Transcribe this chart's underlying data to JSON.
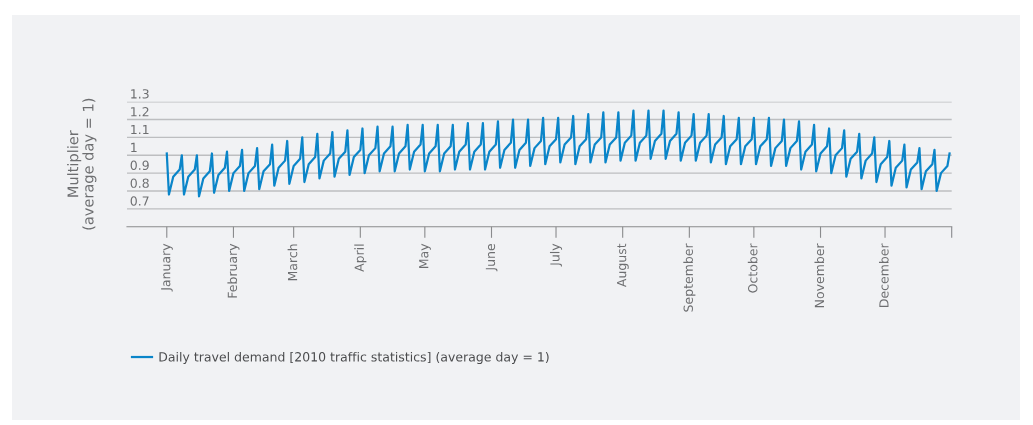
{
  "chart_data": {
    "type": "line",
    "ylabel": "Multiplier\n(average day = 1)",
    "x": [
      "2010-01-01",
      "2010-01-02",
      "2010-01-04",
      "2010-01-07",
      "2010-01-08",
      "2010-01-09",
      "2010-01-11",
      "2010-01-14",
      "2010-01-15",
      "2010-01-16",
      "2010-01-18",
      "2010-01-21",
      "2010-01-22",
      "2010-01-23",
      "2010-01-25",
      "2010-01-28",
      "2010-01-29",
      "2010-01-30",
      "2010-02-01",
      "2010-02-04",
      "2010-02-05",
      "2010-02-06",
      "2010-02-08",
      "2010-02-11",
      "2010-02-12",
      "2010-02-13",
      "2010-02-15",
      "2010-02-18",
      "2010-02-19",
      "2010-02-20",
      "2010-02-22",
      "2010-02-25",
      "2010-02-26",
      "2010-02-27",
      "2010-03-01",
      "2010-03-04",
      "2010-03-05",
      "2010-03-06",
      "2010-03-08",
      "2010-03-11",
      "2010-03-12",
      "2010-03-13",
      "2010-03-15",
      "2010-03-18",
      "2010-03-19",
      "2010-03-20",
      "2010-03-22",
      "2010-03-25",
      "2010-03-26",
      "2010-03-27",
      "2010-03-29",
      "2010-04-01",
      "2010-04-02",
      "2010-04-03",
      "2010-04-05",
      "2010-04-08",
      "2010-04-09",
      "2010-04-10",
      "2010-04-12",
      "2010-04-15",
      "2010-04-16",
      "2010-04-17",
      "2010-04-19",
      "2010-04-22",
      "2010-04-23",
      "2010-04-24",
      "2010-04-26",
      "2010-04-29",
      "2010-04-30",
      "2010-05-01",
      "2010-05-03",
      "2010-05-06",
      "2010-05-07",
      "2010-05-08",
      "2010-05-10",
      "2010-05-13",
      "2010-05-14",
      "2010-05-15",
      "2010-05-17",
      "2010-05-20",
      "2010-05-21",
      "2010-05-22",
      "2010-05-24",
      "2010-05-27",
      "2010-05-28",
      "2010-05-29",
      "2010-05-31",
      "2010-06-03",
      "2010-06-04",
      "2010-06-05",
      "2010-06-07",
      "2010-06-10",
      "2010-06-11",
      "2010-06-12",
      "2010-06-14",
      "2010-06-17",
      "2010-06-18",
      "2010-06-19",
      "2010-06-21",
      "2010-06-24",
      "2010-06-25",
      "2010-06-26",
      "2010-06-28",
      "2010-07-01",
      "2010-07-02",
      "2010-07-03",
      "2010-07-05",
      "2010-07-08",
      "2010-07-09",
      "2010-07-10",
      "2010-07-12",
      "2010-07-15",
      "2010-07-16",
      "2010-07-17",
      "2010-07-19",
      "2010-07-22",
      "2010-07-23",
      "2010-07-24",
      "2010-07-26",
      "2010-07-29",
      "2010-07-30",
      "2010-07-31",
      "2010-08-02",
      "2010-08-05",
      "2010-08-06",
      "2010-08-07",
      "2010-08-09",
      "2010-08-12",
      "2010-08-13",
      "2010-08-14",
      "2010-08-16",
      "2010-08-19",
      "2010-08-20",
      "2010-08-21",
      "2010-08-23",
      "2010-08-26",
      "2010-08-27",
      "2010-08-28",
      "2010-08-30",
      "2010-09-02",
      "2010-09-03",
      "2010-09-04",
      "2010-09-06",
      "2010-09-09",
      "2010-09-10",
      "2010-09-11",
      "2010-09-13",
      "2010-09-16",
      "2010-09-17",
      "2010-09-18",
      "2010-09-20",
      "2010-09-23",
      "2010-09-24",
      "2010-09-25",
      "2010-09-27",
      "2010-09-30",
      "2010-10-01",
      "2010-10-02",
      "2010-10-04",
      "2010-10-07",
      "2010-10-08",
      "2010-10-09",
      "2010-10-11",
      "2010-10-14",
      "2010-10-15",
      "2010-10-16",
      "2010-10-18",
      "2010-10-21",
      "2010-10-22",
      "2010-10-23",
      "2010-10-25",
      "2010-10-28",
      "2010-10-29",
      "2010-10-30",
      "2010-11-01",
      "2010-11-04",
      "2010-11-05",
      "2010-11-06",
      "2010-11-08",
      "2010-11-11",
      "2010-11-12",
      "2010-11-13",
      "2010-11-15",
      "2010-11-18",
      "2010-11-19",
      "2010-11-20",
      "2010-11-22",
      "2010-11-25",
      "2010-11-26",
      "2010-11-27",
      "2010-11-29",
      "2010-12-02",
      "2010-12-03",
      "2010-12-04",
      "2010-12-06",
      "2010-12-09",
      "2010-12-10",
      "2010-12-11",
      "2010-12-13",
      "2010-12-16",
      "2010-12-17",
      "2010-12-18",
      "2010-12-20",
      "2010-12-23",
      "2010-12-24",
      "2010-12-25",
      "2010-12-27",
      "2010-12-30",
      "2010-12-31"
    ],
    "series": [
      {
        "name": "Daily travel demand [2010 traffic statistics] (average day = 1)",
        "color": "#0a85c9",
        "values": [
          1.01,
          0.78,
          0.88,
          0.92,
          1.0,
          0.78,
          0.88,
          0.92,
          1.0,
          0.77,
          0.87,
          0.91,
          1.01,
          0.79,
          0.89,
          0.93,
          1.02,
          0.8,
          0.9,
          0.94,
          1.03,
          0.8,
          0.9,
          0.94,
          1.04,
          0.81,
          0.91,
          0.95,
          1.06,
          0.83,
          0.93,
          0.97,
          1.08,
          0.84,
          0.94,
          0.98,
          1.1,
          0.85,
          0.95,
          0.99,
          1.12,
          0.87,
          0.97,
          1.01,
          1.13,
          0.88,
          0.98,
          1.02,
          1.14,
          0.89,
          0.99,
          1.03,
          1.15,
          0.9,
          1.0,
          1.04,
          1.16,
          0.91,
          1.01,
          1.05,
          1.16,
          0.91,
          1.01,
          1.05,
          1.17,
          0.92,
          1.02,
          1.06,
          1.17,
          0.91,
          1.01,
          1.05,
          1.17,
          0.91,
          1.01,
          1.05,
          1.17,
          0.92,
          1.02,
          1.06,
          1.18,
          0.92,
          1.02,
          1.06,
          1.18,
          0.92,
          1.02,
          1.06,
          1.19,
          0.93,
          1.03,
          1.07,
          1.2,
          0.93,
          1.03,
          1.07,
          1.2,
          0.94,
          1.04,
          1.08,
          1.21,
          0.95,
          1.05,
          1.09,
          1.21,
          0.96,
          1.06,
          1.1,
          1.22,
          0.95,
          1.05,
          1.09,
          1.23,
          0.96,
          1.06,
          1.1,
          1.24,
          0.96,
          1.06,
          1.1,
          1.24,
          0.97,
          1.07,
          1.11,
          1.25,
          0.97,
          1.07,
          1.11,
          1.25,
          0.98,
          1.08,
          1.12,
          1.25,
          0.98,
          1.08,
          1.12,
          1.24,
          0.97,
          1.07,
          1.11,
          1.23,
          0.97,
          1.07,
          1.11,
          1.23,
          0.96,
          1.06,
          1.1,
          1.22,
          0.95,
          1.05,
          1.09,
          1.21,
          0.95,
          1.05,
          1.09,
          1.21,
          0.95,
          1.05,
          1.09,
          1.21,
          0.94,
          1.04,
          1.08,
          1.2,
          0.94,
          1.04,
          1.08,
          1.19,
          0.92,
          1.02,
          1.06,
          1.17,
          0.91,
          1.01,
          1.05,
          1.15,
          0.9,
          1.0,
          1.04,
          1.14,
          0.88,
          0.98,
          1.02,
          1.12,
          0.87,
          0.97,
          1.01,
          1.1,
          0.85,
          0.95,
          0.99,
          1.08,
          0.83,
          0.93,
          0.97,
          1.06,
          0.82,
          0.92,
          0.96,
          1.04,
          0.81,
          0.91,
          0.95,
          1.03,
          0.8,
          0.9,
          0.94,
          1.01
        ]
      }
    ],
    "xlim": [
      "2009-12-13T12:00",
      "2011-01-01"
    ],
    "xticks": [
      {
        "value": "2010-01-01",
        "label": "January"
      },
      {
        "value": "2010-02-01",
        "label": "February"
      },
      {
        "value": "2010-03-01",
        "label": "March"
      },
      {
        "value": "2010-04-01",
        "label": "April"
      },
      {
        "value": "2010-05-01",
        "label": "May"
      },
      {
        "value": "2010-06-01",
        "label": "June"
      },
      {
        "value": "2010-07-01",
        "label": "July"
      },
      {
        "value": "2010-08-01",
        "label": "August"
      },
      {
        "value": "2010-09-01",
        "label": "September"
      },
      {
        "value": "2010-10-01",
        "label": "October"
      },
      {
        "value": "2010-11-01",
        "label": "November"
      },
      {
        "value": "2010-12-01",
        "label": "December"
      },
      {
        "value": "2011-01-01",
        "label": null
      }
    ],
    "ylim": [
      0.6,
      1.3
    ],
    "yticks": [
      0.7,
      0.8,
      0.9,
      1,
      1.1,
      1.2,
      1.3
    ],
    "grid": "y",
    "legend": "bottom",
    "marker": "none",
    "line_style": "solid"
  }
}
